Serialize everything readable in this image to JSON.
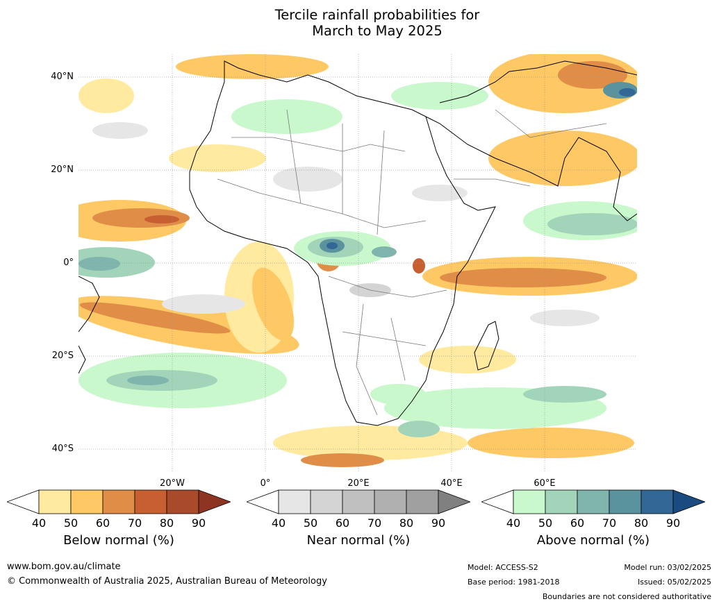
{
  "title_line1": "Tercile rainfall probabilities for",
  "title_line2": "March to May 2025",
  "lat_labels": [
    "40°N",
    "20°N",
    "0°",
    "20°S",
    "40°S"
  ],
  "lon_labels": [
    "20°W",
    "0°",
    "20°E",
    "40°E",
    "60°E"
  ],
  "colorbars": [
    {
      "title": "Below normal (%)",
      "ticks": [
        "40",
        "50",
        "60",
        "70",
        "80",
        "90"
      ],
      "colors": [
        "#ffffff",
        "#ffeaa0",
        "#fec964",
        "#e08e47",
        "#c75f31",
        "#a94b2b",
        "#8e3423"
      ]
    },
    {
      "title": "Near normal (%)",
      "ticks": [
        "40",
        "50",
        "60",
        "70",
        "80",
        "90"
      ],
      "colors": [
        "#ffffff",
        "#e6e6e6",
        "#d4d4d4",
        "#c0c0c0",
        "#b0b0b0",
        "#a0a0a0",
        "#808080"
      ]
    },
    {
      "title": "Above normal (%)",
      "ticks": [
        "40",
        "50",
        "60",
        "70",
        "80",
        "90"
      ],
      "colors": [
        "#ffffff",
        "#c8f8cb",
        "#a1d4b9",
        "#7fb5ad",
        "#5a939e",
        "#326796",
        "#1a4a80"
      ]
    }
  ],
  "footer": {
    "url": "www.bom.gov.au/climate",
    "copyright": "© Commonwealth of Australia 2025, Australian Bureau of Meteorology",
    "model": "Model: ACCESS-S2",
    "base_period": "Base period: 1981-2018",
    "model_run": "Model run: 03/02/2025",
    "issued": "Issued: 05/02/2025",
    "disclaimer": "Boundaries are not considered authoritative"
  }
}
